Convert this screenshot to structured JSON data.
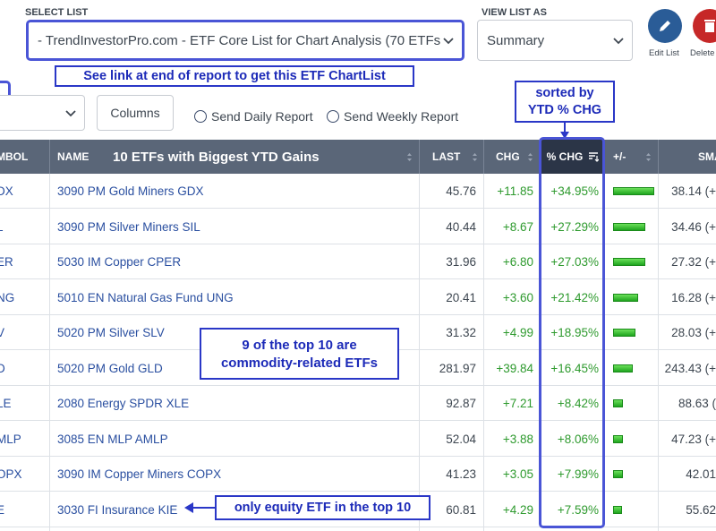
{
  "controls": {
    "select_list_label": "SELECT LIST",
    "select_list_value": "- TrendInvestorPro.com - ETF Core List for Chart Analysis (70 ETFs",
    "view_list_label": "VIEW LIST AS",
    "view_list_value": "Summary",
    "edit_list_label": "Edit List",
    "delete_label": "Delete",
    "columns_label": "Columns",
    "send_daily": "Send Daily Report",
    "send_weekly": "Send Weekly Report"
  },
  "annotations": {
    "chartlist_note": "See link at end of report to get this ETF ChartList",
    "sorted_note_1": "sorted by",
    "sorted_note_2": "YTD % CHG",
    "commodity_note_1": "9 of the top 10 are",
    "commodity_note_2": "commodity-related ETFs",
    "equity_note": "only equity ETF in the top 10"
  },
  "table": {
    "headers": {
      "symbol": "MBOL",
      "name": "NAME",
      "title": "10 ETFs with Biggest YTD Gains",
      "last": "LAST",
      "chg": "CHG",
      "pct_chg": "% CHG",
      "plusminus": "+/-",
      "sma": "SMA"
    },
    "rows": [
      {
        "symbol": "DX",
        "name": "3090 PM Gold Miners GDX",
        "last": "45.76",
        "chg": "+11.85",
        "pct": "+34.95%",
        "bar": 0.3495,
        "sma": "38.14 (+"
      },
      {
        "symbol": "L",
        "name": "3090 PM Silver Miners SIL",
        "last": "40.44",
        "chg": "+8.67",
        "pct": "+27.29%",
        "bar": 0.2729,
        "sma": "34.46 (+"
      },
      {
        "symbol": "ER",
        "name": "5030 IM Copper CPER",
        "last": "31.96",
        "chg": "+6.80",
        "pct": "+27.03%",
        "bar": 0.2703,
        "sma": "27.32 (+"
      },
      {
        "symbol": "NG",
        "name": "5010 EN Natural Gas Fund UNG",
        "last": "20.41",
        "chg": "+3.60",
        "pct": "+21.42%",
        "bar": 0.2142,
        "sma": "16.28 (+"
      },
      {
        "symbol": "V",
        "name": "5020 PM Silver SLV",
        "last": "31.32",
        "chg": "+4.99",
        "pct": "+18.95%",
        "bar": 0.1895,
        "sma": "28.03 (+"
      },
      {
        "symbol": "D",
        "name": "5020 PM Gold GLD",
        "last": "281.97",
        "chg": "+39.84",
        "pct": "+16.45%",
        "bar": 0.1645,
        "sma": "243.43 (+"
      },
      {
        "symbol": "LE",
        "name": "2080 Energy SPDR XLE",
        "last": "92.87",
        "chg": "+7.21",
        "pct": "+8.42%",
        "bar": 0.0842,
        "sma": "88.63 ("
      },
      {
        "symbol": "MLP",
        "name": "3085 EN MLP AMLP",
        "last": "52.04",
        "chg": "+3.88",
        "pct": "+8.06%",
        "bar": 0.0806,
        "sma": "47.23 (+"
      },
      {
        "symbol": "OPX",
        "name": "3090 IM Copper Miners COPX",
        "last": "41.23",
        "chg": "+3.05",
        "pct": "+7.99%",
        "bar": 0.0799,
        "sma": "42.01"
      },
      {
        "symbol": "E",
        "name": "3030 FI Insurance KIE",
        "last": "60.81",
        "chg": "+4.29",
        "pct": "+7.59%",
        "bar": 0.0759,
        "sma": "55.62"
      }
    ]
  }
}
